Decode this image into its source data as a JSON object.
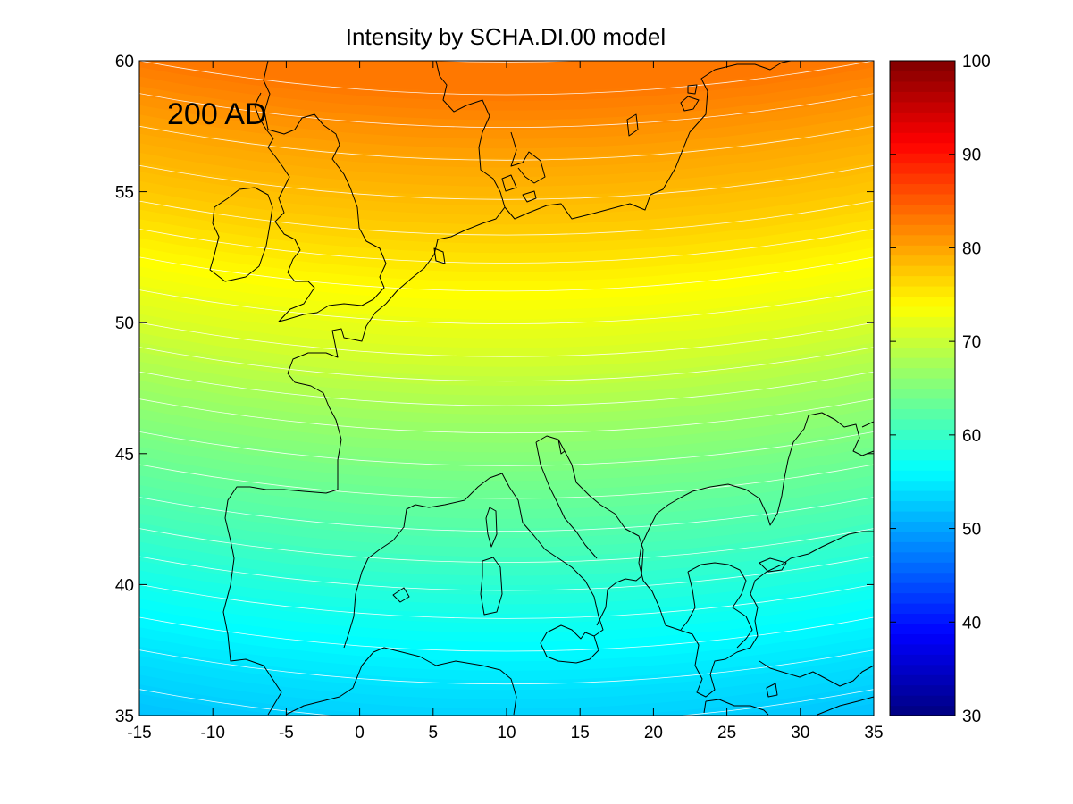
{
  "chart_data": {
    "type": "heatmap",
    "title": "Intensity by SCHA.DI.00 model",
    "annotation": "200 AD",
    "xlim": [
      -15,
      35
    ],
    "ylim": [
      35,
      60
    ],
    "x_ticks": [
      "-15",
      "-10",
      "-5",
      "0",
      "5",
      "10",
      "15",
      "20",
      "25",
      "30",
      "35"
    ],
    "y_ticks": [
      "35",
      "40",
      "45",
      "50",
      "55",
      "60"
    ],
    "colorbar": {
      "range": [
        30,
        100
      ],
      "ticks": [
        "30",
        "40",
        "50",
        "60",
        "70",
        "80",
        "90",
        "100"
      ],
      "colormap": "jet"
    },
    "field_summary": {
      "description": "intensity increases with latitude; contour lines every ~1.5 units",
      "value_at_lat": [
        [
          35,
          52
        ],
        [
          37.5,
          54.5
        ],
        [
          40,
          57.5
        ],
        [
          42.5,
          61
        ],
        [
          45,
          64
        ],
        [
          47.5,
          67
        ],
        [
          50,
          71
        ],
        [
          52.5,
          74
        ],
        [
          55,
          77.5
        ],
        [
          57.5,
          80
        ],
        [
          60,
          83
        ]
      ]
    },
    "contour_style": {
      "color": "#ffffff"
    },
    "coastline_style": {
      "color": "#000000"
    }
  }
}
